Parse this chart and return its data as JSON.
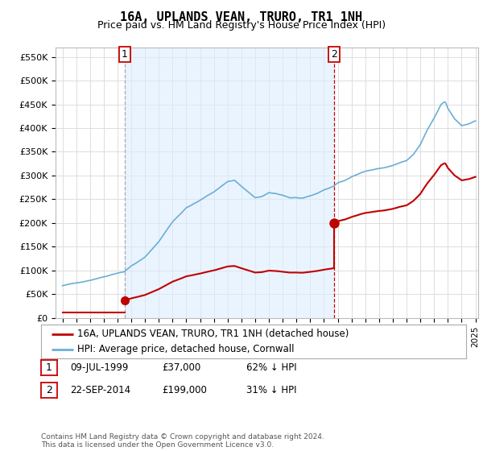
{
  "title": "16A, UPLANDS VEAN, TRURO, TR1 1NH",
  "subtitle": "Price paid vs. HM Land Registry's House Price Index (HPI)",
  "ylabel_ticks": [
    "£0",
    "£50K",
    "£100K",
    "£150K",
    "£200K",
    "£250K",
    "£300K",
    "£350K",
    "£400K",
    "£450K",
    "£500K",
    "£550K"
  ],
  "ytick_values": [
    0,
    50000,
    100000,
    150000,
    200000,
    250000,
    300000,
    350000,
    400000,
    450000,
    500000,
    550000
  ],
  "ylim": [
    0,
    570000
  ],
  "hpi_color": "#6baed6",
  "price_color": "#c00000",
  "vline1_color": "#aaaaaa",
  "vline2_color": "#cc0000",
  "sale1_year": 1999.52,
  "sale1_price": 37000,
  "sale2_year": 2014.72,
  "sale2_price": 199000,
  "legend_label1": "16A, UPLANDS VEAN, TRURO, TR1 1NH (detached house)",
  "legend_label2": "HPI: Average price, detached house, Cornwall",
  "footer": "Contains HM Land Registry data © Crown copyright and database right 2024.\nThis data is licensed under the Open Government Licence v3.0.",
  "background_color": "#ffffff",
  "grid_color": "#dddddd",
  "shade_color": "#ddeeff",
  "xmin": 1994.5,
  "xmax": 2025.2
}
